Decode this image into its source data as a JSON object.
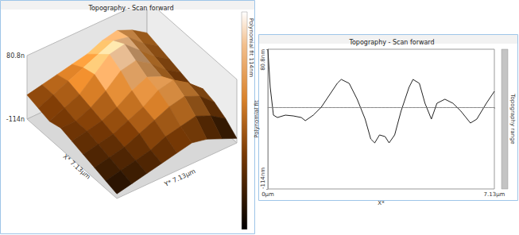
{
  "chart_data": [
    {
      "type": "surface",
      "title": "Topography - Scan forward",
      "xlabel": "X* 7.13µm",
      "ylabel": "Y* 7.13µm",
      "xlim": [
        0,
        7.13
      ],
      "ylim": [
        0,
        7.13
      ],
      "zlim": [
        -114,
        80.8
      ],
      "zticks": [
        {
          "value": 80.8,
          "label": "80.8n"
        },
        {
          "value": -114,
          "label": "-114n"
        }
      ],
      "heights": [
        [
          -40,
          -30,
          -20,
          -10,
          0,
          20,
          30,
          10,
          -20
        ],
        [
          -50,
          -30,
          -10,
          10,
          30,
          50,
          40,
          0,
          -30
        ],
        [
          -60,
          -40,
          -20,
          20,
          60,
          70,
          30,
          -10,
          -40
        ],
        [
          -50,
          -50,
          -30,
          0,
          40,
          50,
          20,
          -20,
          -50
        ],
        [
          -60,
          -50,
          -40,
          -20,
          10,
          30,
          10,
          -30,
          -60
        ],
        [
          -70,
          -60,
          -50,
          -30,
          -10,
          20,
          30,
          0,
          -40
        ],
        [
          -80,
          -70,
          -60,
          -40,
          -20,
          0,
          10,
          -10,
          -50
        ],
        [
          -90,
          -80,
          -70,
          -60,
          -40,
          -30,
          -20,
          -40,
          -70
        ],
        [
          -100,
          -90,
          -80,
          -70,
          -60,
          -50,
          -60,
          -80,
          -100
        ]
      ],
      "colorbar": {
        "range": [
          -114,
          80.8
        ],
        "label": "Polynomial fit 114nm"
      }
    },
    {
      "type": "line",
      "title": "Topography - Scan forward",
      "xlabel": "X*",
      "ylabel": "Polynomial fit",
      "side_label": "Topography range",
      "color": "#222222",
      "x": [
        0,
        0.075,
        0.176,
        0.301,
        0.552,
        0.803,
        1.054,
        1.18,
        1.431,
        1.682,
        1.933,
        2.184,
        2.31,
        2.561,
        2.812,
        3.063,
        3.239,
        3.364,
        3.515,
        3.691,
        3.816,
        3.992,
        4.193,
        4.444,
        4.569,
        4.77,
        4.946,
        5.147,
        5.323,
        5.574,
        5.825,
        6.076,
        6.377,
        6.578,
        6.879,
        7.13
      ],
      "values": [
        80.8,
        27.7,
        -11.1,
        -14.4,
        -11.1,
        -12.2,
        -14.4,
        -18.8,
        -11.1,
        0,
        16.6,
        33.2,
        38.7,
        33.2,
        11.1,
        -16.6,
        -44.3,
        -49.8,
        -38.7,
        -41.0,
        -49.8,
        -38.7,
        -5.5,
        27.7,
        38.7,
        33.2,
        5.5,
        -16.6,
        5.5,
        11.1,
        5.5,
        -5.5,
        -22.1,
        -16.6,
        5.5,
        22.1
      ],
      "baseline": 0,
      "xlim": [
        0,
        7.13
      ],
      "xticks": [
        {
          "value": 0,
          "label": "0µm"
        },
        {
          "value": 7.13,
          "label": "7.13µm"
        }
      ],
      "ylim": [
        -114,
        80.8
      ],
      "yticks": [
        {
          "value": -114,
          "label": "-114nm"
        },
        {
          "value": 80.8,
          "label": "80.8nm"
        }
      ],
      "grid": false
    }
  ]
}
